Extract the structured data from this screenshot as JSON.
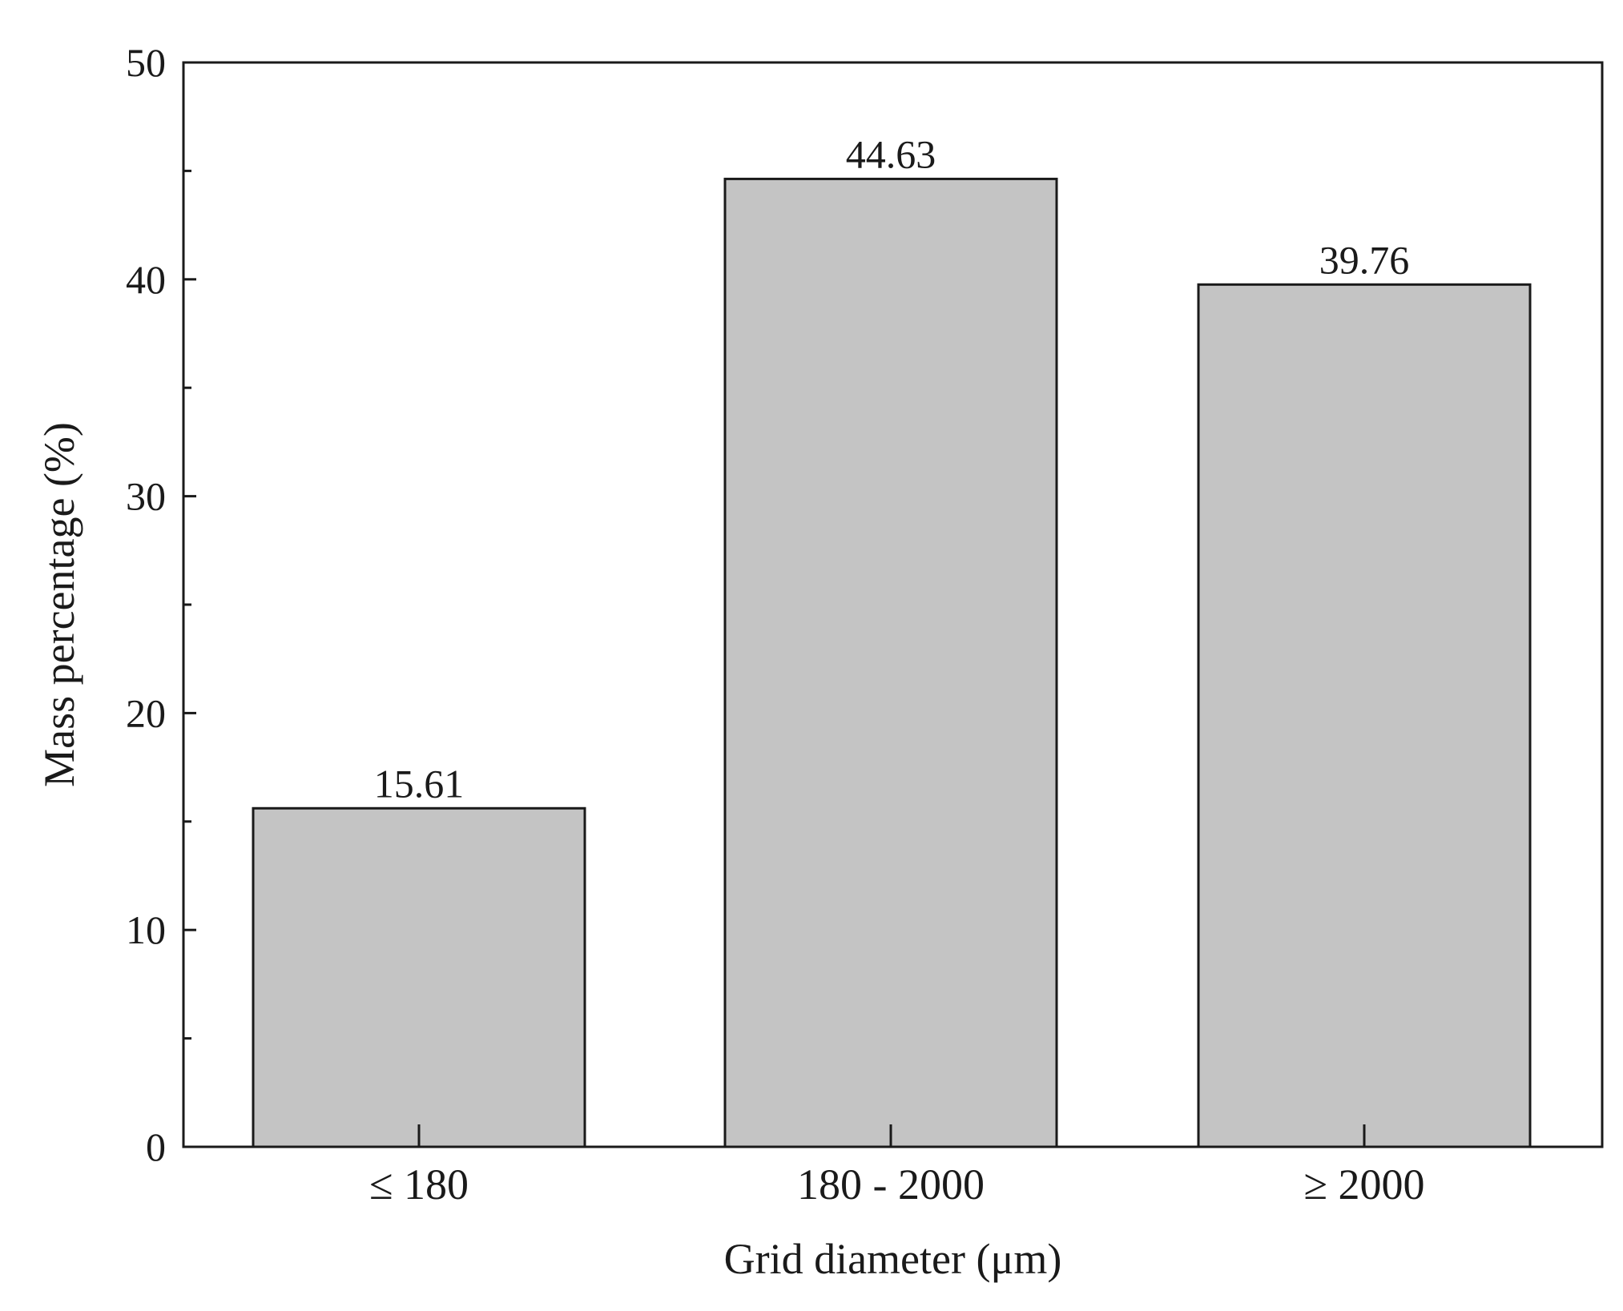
{
  "chart_data": {
    "type": "bar",
    "title": "",
    "xlabel": "Grid diameter (μm)",
    "ylabel": "Mass percentage (%)",
    "categories": [
      "≤ 180",
      "180 - 2000",
      "≥ 2000"
    ],
    "values": [
      15.61,
      44.63,
      39.76
    ],
    "data_labels": [
      "15.61",
      "44.63",
      "39.76"
    ],
    "ylim": [
      0,
      50
    ],
    "yticks": [
      0,
      10,
      20,
      30,
      40,
      50
    ],
    "ytick_labels": [
      "0",
      "10",
      "20",
      "30",
      "40",
      "50"
    ],
    "grid": false,
    "legend": "none",
    "colors": {
      "bar_fill": "#c4c4c4",
      "bar_stroke": "#1a1a1a",
      "axis": "#1a1a1a"
    }
  }
}
